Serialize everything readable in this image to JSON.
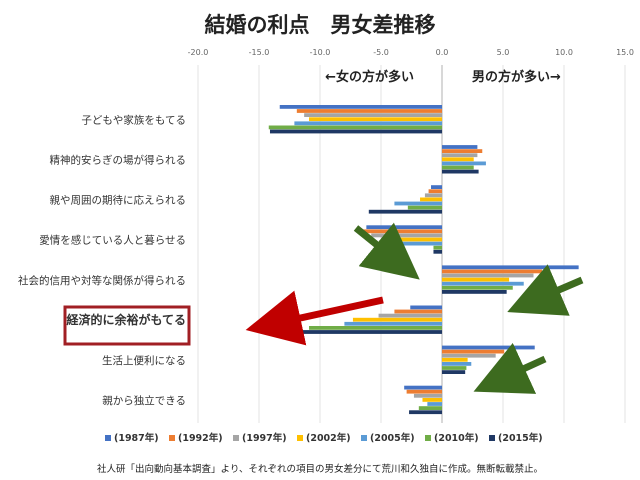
{
  "chart_data": {
    "type": "bar",
    "orientation": "horizontal",
    "title": "結婚の利点　男女差推移",
    "xlim": [
      -20,
      15
    ],
    "x_ticks": [
      "-20.0",
      "-15.0",
      "-10.0",
      "-5.0",
      "0.0",
      "5.0",
      "10.0",
      "15.0"
    ],
    "grid": true,
    "legend_position": "bottom",
    "annotations": {
      "left_label": "←女の方が多い",
      "right_label": "男の方が多い→"
    },
    "footnote": "社人研「出向動向基本調査」より、それぞれの項目の男女差分にて荒川和久独自に作成。無断転載禁止。",
    "categories": [
      "子どもや家族をもてる",
      "精神的安らぎの場が得られる",
      "親や周囲の期待に応えられる",
      "愛情を感じている人と暮らせる",
      "社会的信用や対等な関係が得られる",
      "経済的に余裕がもてる",
      "生活上便利になる",
      "親から独立できる"
    ],
    "highlight_category": "経済的に余裕がもてる",
    "series": [
      {
        "name": "(1987年)",
        "color": "#4472c4",
        "values": [
          -13.3,
          2.9,
          -0.9,
          -6.2,
          11.2,
          -2.6,
          7.6,
          -3.1
        ]
      },
      {
        "name": "(1992年)",
        "color": "#ed7d31",
        "values": [
          -11.9,
          3.3,
          -1.1,
          -6.7,
          8.2,
          -3.9,
          5.1,
          -2.9
        ]
      },
      {
        "name": "(1997年)",
        "color": "#a5a5a5",
        "values": [
          -11.3,
          2.9,
          -1.4,
          -5.8,
          7.5,
          -5.2,
          4.4,
          -2.3
        ]
      },
      {
        "name": "(2002年)",
        "color": "#ffc000",
        "values": [
          -10.9,
          2.6,
          -1.8,
          -4.6,
          5.5,
          -7.3,
          2.1,
          -1.6
        ]
      },
      {
        "name": "(2005年)",
        "color": "#5b9bd5",
        "values": [
          -12.1,
          3.6,
          -3.9,
          -4.1,
          6.7,
          -8.0,
          2.4,
          -1.2
        ]
      },
      {
        "name": "(2010年)",
        "color": "#70ad47",
        "values": [
          -14.2,
          2.6,
          -2.8,
          -0.7,
          5.8,
          -10.9,
          2.0,
          -1.9
        ]
      },
      {
        "name": "(2015年)",
        "color": "#1f3864",
        "values": [
          -14.1,
          3.0,
          -6.0,
          -0.7,
          5.3,
          -14.6,
          1.9,
          -2.7
        ]
      }
    ]
  }
}
